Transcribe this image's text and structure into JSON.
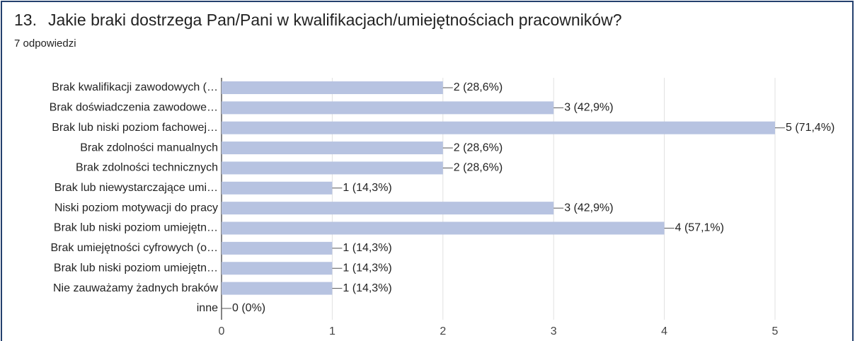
{
  "chart_data": {
    "type": "bar",
    "orientation": "horizontal",
    "question_number": "13.",
    "title": "Jakie braki dostrzega Pan/Pani w kwalifikacjach/umiejętnościach pracowników?",
    "subtitle": "7 odpowiedzi",
    "categories": [
      "Brak kwalifikacji zawodowych (…",
      "Brak doświadczenia zawodowe…",
      "Brak lub niski poziom fachowej…",
      "Brak zdolności manualnych",
      "Brak zdolności technicznych",
      "Brak lub niewystarczające umi…",
      "Niski poziom motywacji do pracy",
      "Brak lub niski poziom umiejętn…",
      "Brak umiejętności cyfrowych (o…",
      "Brak lub niski poziom umiejętn…",
      "Nie zauważamy żadnych braków",
      "inne"
    ],
    "values": [
      2,
      3,
      5,
      2,
      2,
      1,
      3,
      4,
      1,
      1,
      1,
      0
    ],
    "value_labels": [
      "2 (28,6%)",
      "3 (42,9%)",
      "5 (71,4%)",
      "2 (28,6%)",
      "2 (28,6%)",
      "1 (14,3%)",
      "3 (42,9%)",
      "4 (57,1%)",
      "1 (14,3%)",
      "1 (14,3%)",
      "1 (14,3%)",
      "0 (0%)"
    ],
    "color": "#b7c3e1",
    "xlim": [
      0,
      5
    ],
    "xticks": [
      0,
      1,
      2,
      3,
      4,
      5
    ],
    "grid": true
  }
}
